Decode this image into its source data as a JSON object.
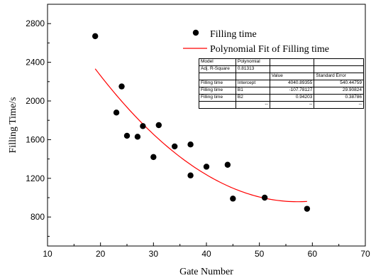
{
  "chart_data": {
    "type": "scatter",
    "title": "",
    "xlabel": "Gate Number",
    "ylabel": "Filling Time/s",
    "xlim": [
      10,
      70
    ],
    "ylim": [
      500,
      3000
    ],
    "x_ticks": [
      "10",
      "20",
      "30",
      "40",
      "50",
      "60",
      "70"
    ],
    "y_ticks": [
      "800",
      "1200",
      "1600",
      "2000",
      "2400",
      "2800"
    ],
    "grid": false,
    "legend_position": "top-right",
    "series": [
      {
        "name": "Filling time",
        "kind": "scatter",
        "color": "#000000",
        "points": [
          [
            19,
            2670
          ],
          [
            23,
            1880
          ],
          [
            24,
            2150
          ],
          [
            25,
            1640
          ],
          [
            27,
            1630
          ],
          [
            28,
            1740
          ],
          [
            30,
            1420
          ],
          [
            31,
            1750
          ],
          [
            34,
            1530
          ],
          [
            37,
            1550
          ],
          [
            37,
            1230
          ],
          [
            40,
            1320
          ],
          [
            44,
            1340
          ],
          [
            45,
            990
          ],
          [
            51,
            1000
          ],
          [
            59,
            885
          ]
        ]
      },
      {
        "name": "Polynomial Fit of Filling time",
        "kind": "line",
        "color": "#ff0000",
        "x_range": [
          19,
          59
        ],
        "coefficients": {
          "intercept": 4040.89355,
          "b1": -107.78127,
          "b2": 0.94203
        }
      }
    ]
  },
  "stats_table": {
    "rows": [
      [
        "Model",
        "Polynomial",
        "",
        ""
      ],
      [
        "Adj. R-Square",
        "0.81313",
        "",
        ""
      ],
      [
        "",
        "",
        "Value",
        "Standard Error"
      ],
      [
        "Filling time",
        "Intercept",
        "4040.89355",
        "540.44759"
      ],
      [
        "Filling time",
        "B1",
        "-107.78127",
        "29.90824"
      ],
      [
        "Filling time",
        "B2",
        "0.94203",
        "0.38786"
      ],
      [
        "",
        "--",
        "--",
        "--"
      ]
    ]
  }
}
